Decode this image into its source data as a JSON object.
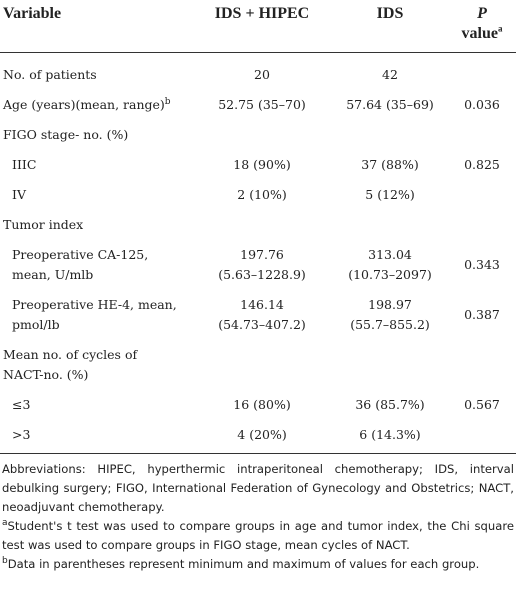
{
  "table": {
    "header": [
      "Variable",
      "IDS + HIPEC",
      "IDS"
    ],
    "p_header": {
      "italic": "P",
      "text": "value",
      "sup": "a"
    },
    "rows": [
      {
        "label": "No. of patients",
        "values": [
          "20",
          "42",
          null
        ]
      },
      {
        "label": "Age (years)(mean, range)",
        "label_sup": "b",
        "values": [
          "52.75 (35–70)",
          "57.64 (35–69)",
          "0.036"
        ]
      },
      {
        "label": "FIGO stage- no. (%)"
      },
      {
        "label": "IIIC",
        "indent": true,
        "values": [
          "18 (90%)",
          "37 (88%)",
          "0.825"
        ]
      },
      {
        "label": "IV",
        "indent": true,
        "values": [
          "2 (10%)",
          "5 (12%)",
          null
        ]
      },
      {
        "label": "Tumor index"
      },
      {
        "label": [
          "Preoperative CA-125,",
          "mean, U/mlb"
        ],
        "indent": true,
        "values": [
          [
            "197.76",
            "(5.63–1228.9)"
          ],
          [
            "313.04",
            "(10.73–2097)"
          ],
          "0.343"
        ]
      },
      {
        "label": [
          "Preoperative HE-4, mean,",
          "pmol/lb"
        ],
        "indent": true,
        "values": [
          [
            "146.14",
            "(54.73–407.2)"
          ],
          [
            "198.97",
            "(55.7–855.2)"
          ],
          "0.387"
        ]
      },
      {
        "label": [
          "Mean no. of cycles of",
          "NACT-no. (%)"
        ]
      },
      {
        "label": "≤3",
        "indent": true,
        "values": [
          "16 (80%)",
          "36 (85.7%)",
          "0.567"
        ]
      },
      {
        "label": ">3",
        "indent": true,
        "values": [
          "4 (20%)",
          "6 (14.3%)",
          null
        ]
      }
    ]
  },
  "footer": {
    "abbreviations": "Abbreviations: HIPEC, hyperthermic intraperitoneal chemotherapy; IDS, interval debulking surgery; FIGO, International Federation of Gynecology and Obstetrics; NACT, neoadjuvant chemotherapy.",
    "notes": [
      {
        "mark": "a",
        "text": "Student's t test was used to compare groups in age and tumor index, the Chi square test was used to compare groups in FIGO stage, mean cycles of NACT."
      },
      {
        "mark": "b",
        "text": "Data in parentheses represent minimum and maximum of values for each group."
      }
    ]
  }
}
